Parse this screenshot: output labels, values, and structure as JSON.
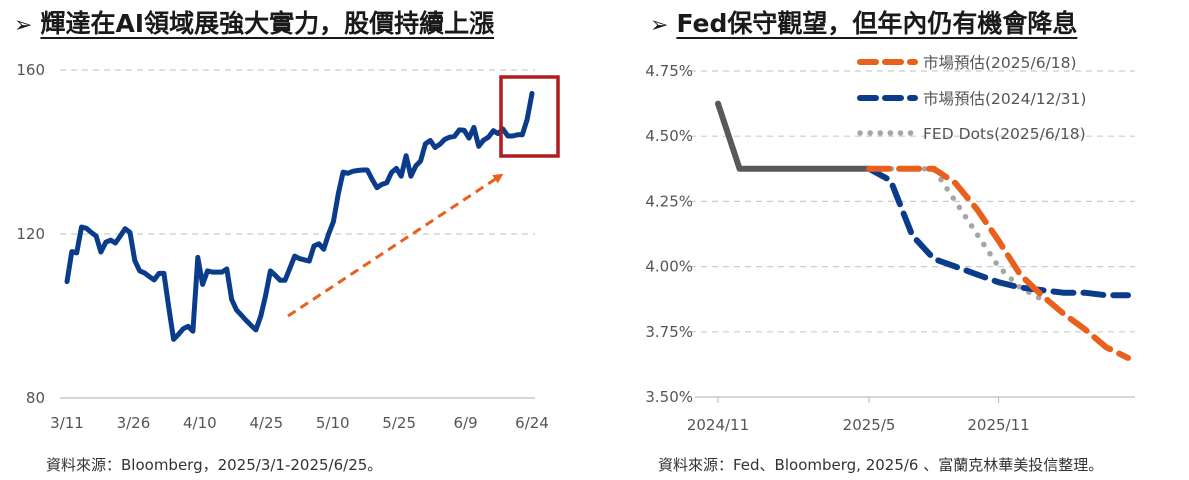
{
  "left": {
    "title_marker": "➢",
    "title": "輝達在AI領域展強大實力，股價持續上漲",
    "source": "資料來源：Bloomberg，2025/3/1-2025/6/25。",
    "colors": {
      "line": "#0b3c8c",
      "grid": "#cccccc",
      "box": "#b01c1c",
      "arrow": "#e8601c"
    },
    "chart_data": {
      "type": "line",
      "title": "",
      "xlabel": "",
      "ylabel": "",
      "ylim": [
        80,
        160
      ],
      "yticks": [
        "80",
        "120",
        "160"
      ],
      "xticks": [
        "3/11",
        "3/26",
        "4/10",
        "4/25",
        "5/10",
        "5/25",
        "6/9",
        "6/24"
      ],
      "series": [
        {
          "values": [
            [
              0,
              108.4
            ],
            [
              1,
              115.7
            ],
            [
              2,
              115.4
            ],
            [
              3,
              121.7
            ],
            [
              4,
              121.4
            ],
            [
              5,
              120.4
            ],
            [
              6,
              119.5
            ],
            [
              7,
              115.6
            ],
            [
              8,
              118.0
            ],
            [
              9,
              118.5
            ],
            [
              10,
              117.8
            ],
            [
              11,
              119.5
            ],
            [
              12,
              121.3
            ],
            [
              13,
              120.4
            ],
            [
              14,
              113.5
            ],
            [
              15,
              111.0
            ],
            [
              16,
              110.5
            ],
            [
              17,
              109.6
            ],
            [
              18,
              108.8
            ],
            [
              19,
              110.4
            ],
            [
              20,
              110.4
            ],
            [
              21,
              102.2
            ],
            [
              22,
              94.3
            ],
            [
              23,
              95.5
            ],
            [
              24,
              96.9
            ],
            [
              25,
              97.5
            ],
            [
              26,
              96.3
            ],
            [
              27,
              114.3
            ],
            [
              28,
              107.7
            ],
            [
              29,
              111.0
            ],
            [
              30,
              110.7
            ],
            [
              31,
              110.7
            ],
            [
              32,
              110.7
            ],
            [
              33,
              111.5
            ],
            [
              34,
              104.0
            ],
            [
              35,
              101.5
            ],
            [
              36,
              100.2
            ],
            [
              37,
              98.9
            ],
            [
              38,
              97.7
            ],
            [
              39,
              96.6
            ],
            [
              40,
              100.0
            ],
            [
              41,
              105.0
            ],
            [
              42,
              111.0
            ],
            [
              43,
              109.9
            ],
            [
              44,
              108.7
            ],
            [
              45,
              108.7
            ],
            [
              46,
              111.6
            ],
            [
              47,
              114.6
            ],
            [
              48,
              114.0
            ],
            [
              49,
              113.7
            ],
            [
              50,
              113.4
            ],
            [
              51,
              117.1
            ],
            [
              52,
              117.6
            ],
            [
              53,
              116.3
            ],
            [
              54,
              120.0
            ],
            [
              55,
              123.0
            ],
            [
              56,
              129.8
            ],
            [
              57,
              135.1
            ],
            [
              58,
              134.8
            ],
            [
              59,
              135.3
            ],
            [
              60,
              135.5
            ],
            [
              61,
              135.6
            ],
            [
              62,
              135.6
            ],
            [
              63,
              133.3
            ],
            [
              64,
              131.3
            ],
            [
              65,
              132.1
            ],
            [
              66,
              132.5
            ],
            [
              67,
              135.0
            ],
            [
              68,
              136.0
            ],
            [
              69,
              134.1
            ],
            [
              70,
              139.1
            ],
            [
              71,
              134.1
            ],
            [
              72,
              136.6
            ],
            [
              73,
              137.8
            ],
            [
              74,
              142.0
            ],
            [
              75,
              142.8
            ],
            [
              76,
              141.1
            ],
            [
              77,
              141.9
            ],
            [
              78,
              143.1
            ],
            [
              79,
              143.6
            ],
            [
              80,
              143.8
            ],
            [
              81,
              145.4
            ],
            [
              82,
              145.3
            ],
            [
              83,
              143.4
            ],
            [
              84,
              146.0
            ],
            [
              85,
              141.4
            ],
            [
              86,
              142.9
            ],
            [
              87,
              143.6
            ],
            [
              88,
              145.2
            ],
            [
              89,
              144.5
            ],
            [
              90,
              145.6
            ],
            [
              91,
              143.9
            ],
            [
              92,
              143.9
            ],
            [
              93,
              144.2
            ],
            [
              94,
              144.2
            ],
            [
              95,
              148.0
            ],
            [
              96,
              154.3
            ]
          ]
        }
      ],
      "highlight": "latest high (boxed)"
    }
  },
  "right": {
    "title_marker": "➢",
    "title": "Fed保守觀望，但年內仍有機會降息",
    "source": "資料來源：Fed、Bloomberg, 2025/6 、富蘭克林華美投信整理。",
    "colors": {
      "actual": "#595959",
      "mkt_2025": "#e8601c",
      "mkt_2024": "#0b3c8c",
      "dots": "#a6a6a6",
      "grid": "#cccccc"
    },
    "chart_data": {
      "type": "line",
      "title": "",
      "xlabel": "",
      "ylabel": "",
      "ylim": [
        3.5,
        4.75
      ],
      "yticks": [
        "3.50%",
        "3.75%",
        "4.00%",
        "4.25%",
        "4.50%",
        "4.75%"
      ],
      "xticks": [
        "2024/11",
        "2025/5",
        "2025/11"
      ],
      "legend_position": "top-right",
      "series": [
        {
          "name": "",
          "style": "solid",
          "values": [
            [
              0,
              4.625
            ],
            [
              1,
              4.375
            ],
            [
              2,
              4.375
            ],
            [
              3,
              4.375
            ],
            [
              4,
              4.375
            ],
            [
              5,
              4.375
            ],
            [
              6,
              4.375
            ],
            [
              7,
              4.375
            ]
          ]
        },
        {
          "name": "市場預估(2025/6/18)",
          "style": "dashed",
          "values": [
            [
              7,
              4.375
            ],
            [
              8,
              4.375
            ],
            [
              9,
              4.375
            ],
            [
              10,
              4.375
            ],
            [
              11,
              4.32
            ],
            [
              12,
              4.22
            ],
            [
              13,
              4.1
            ],
            [
              14,
              3.97
            ],
            [
              15,
              3.89
            ],
            [
              16,
              3.82
            ],
            [
              17,
              3.76
            ],
            [
              18,
              3.69
            ],
            [
              19,
              3.65
            ]
          ]
        },
        {
          "name": "市場預估(2024/12/31)",
          "style": "dashed",
          "values": [
            [
              7,
              4.375
            ],
            [
              8,
              4.33
            ],
            [
              9,
              4.12
            ],
            [
              10,
              4.03
            ],
            [
              11,
              4.0
            ],
            [
              12,
              3.97
            ],
            [
              13,
              3.94
            ],
            [
              14,
              3.92
            ],
            [
              15,
              3.91
            ],
            [
              16,
              3.9
            ],
            [
              17,
              3.9
            ],
            [
              18,
              3.89
            ],
            [
              19,
              3.89
            ]
          ]
        },
        {
          "name": "FED Dots(2025/6/18)",
          "style": "dotted",
          "values": [
            [
              7,
              4.375
            ],
            [
              8,
              4.375
            ],
            [
              9,
              4.375
            ],
            [
              10,
              4.375
            ],
            [
              11,
              4.25
            ],
            [
              12,
              4.125
            ],
            [
              13,
              4.0
            ],
            [
              14,
              3.92
            ],
            [
              15,
              3.875
            ]
          ]
        }
      ]
    }
  }
}
